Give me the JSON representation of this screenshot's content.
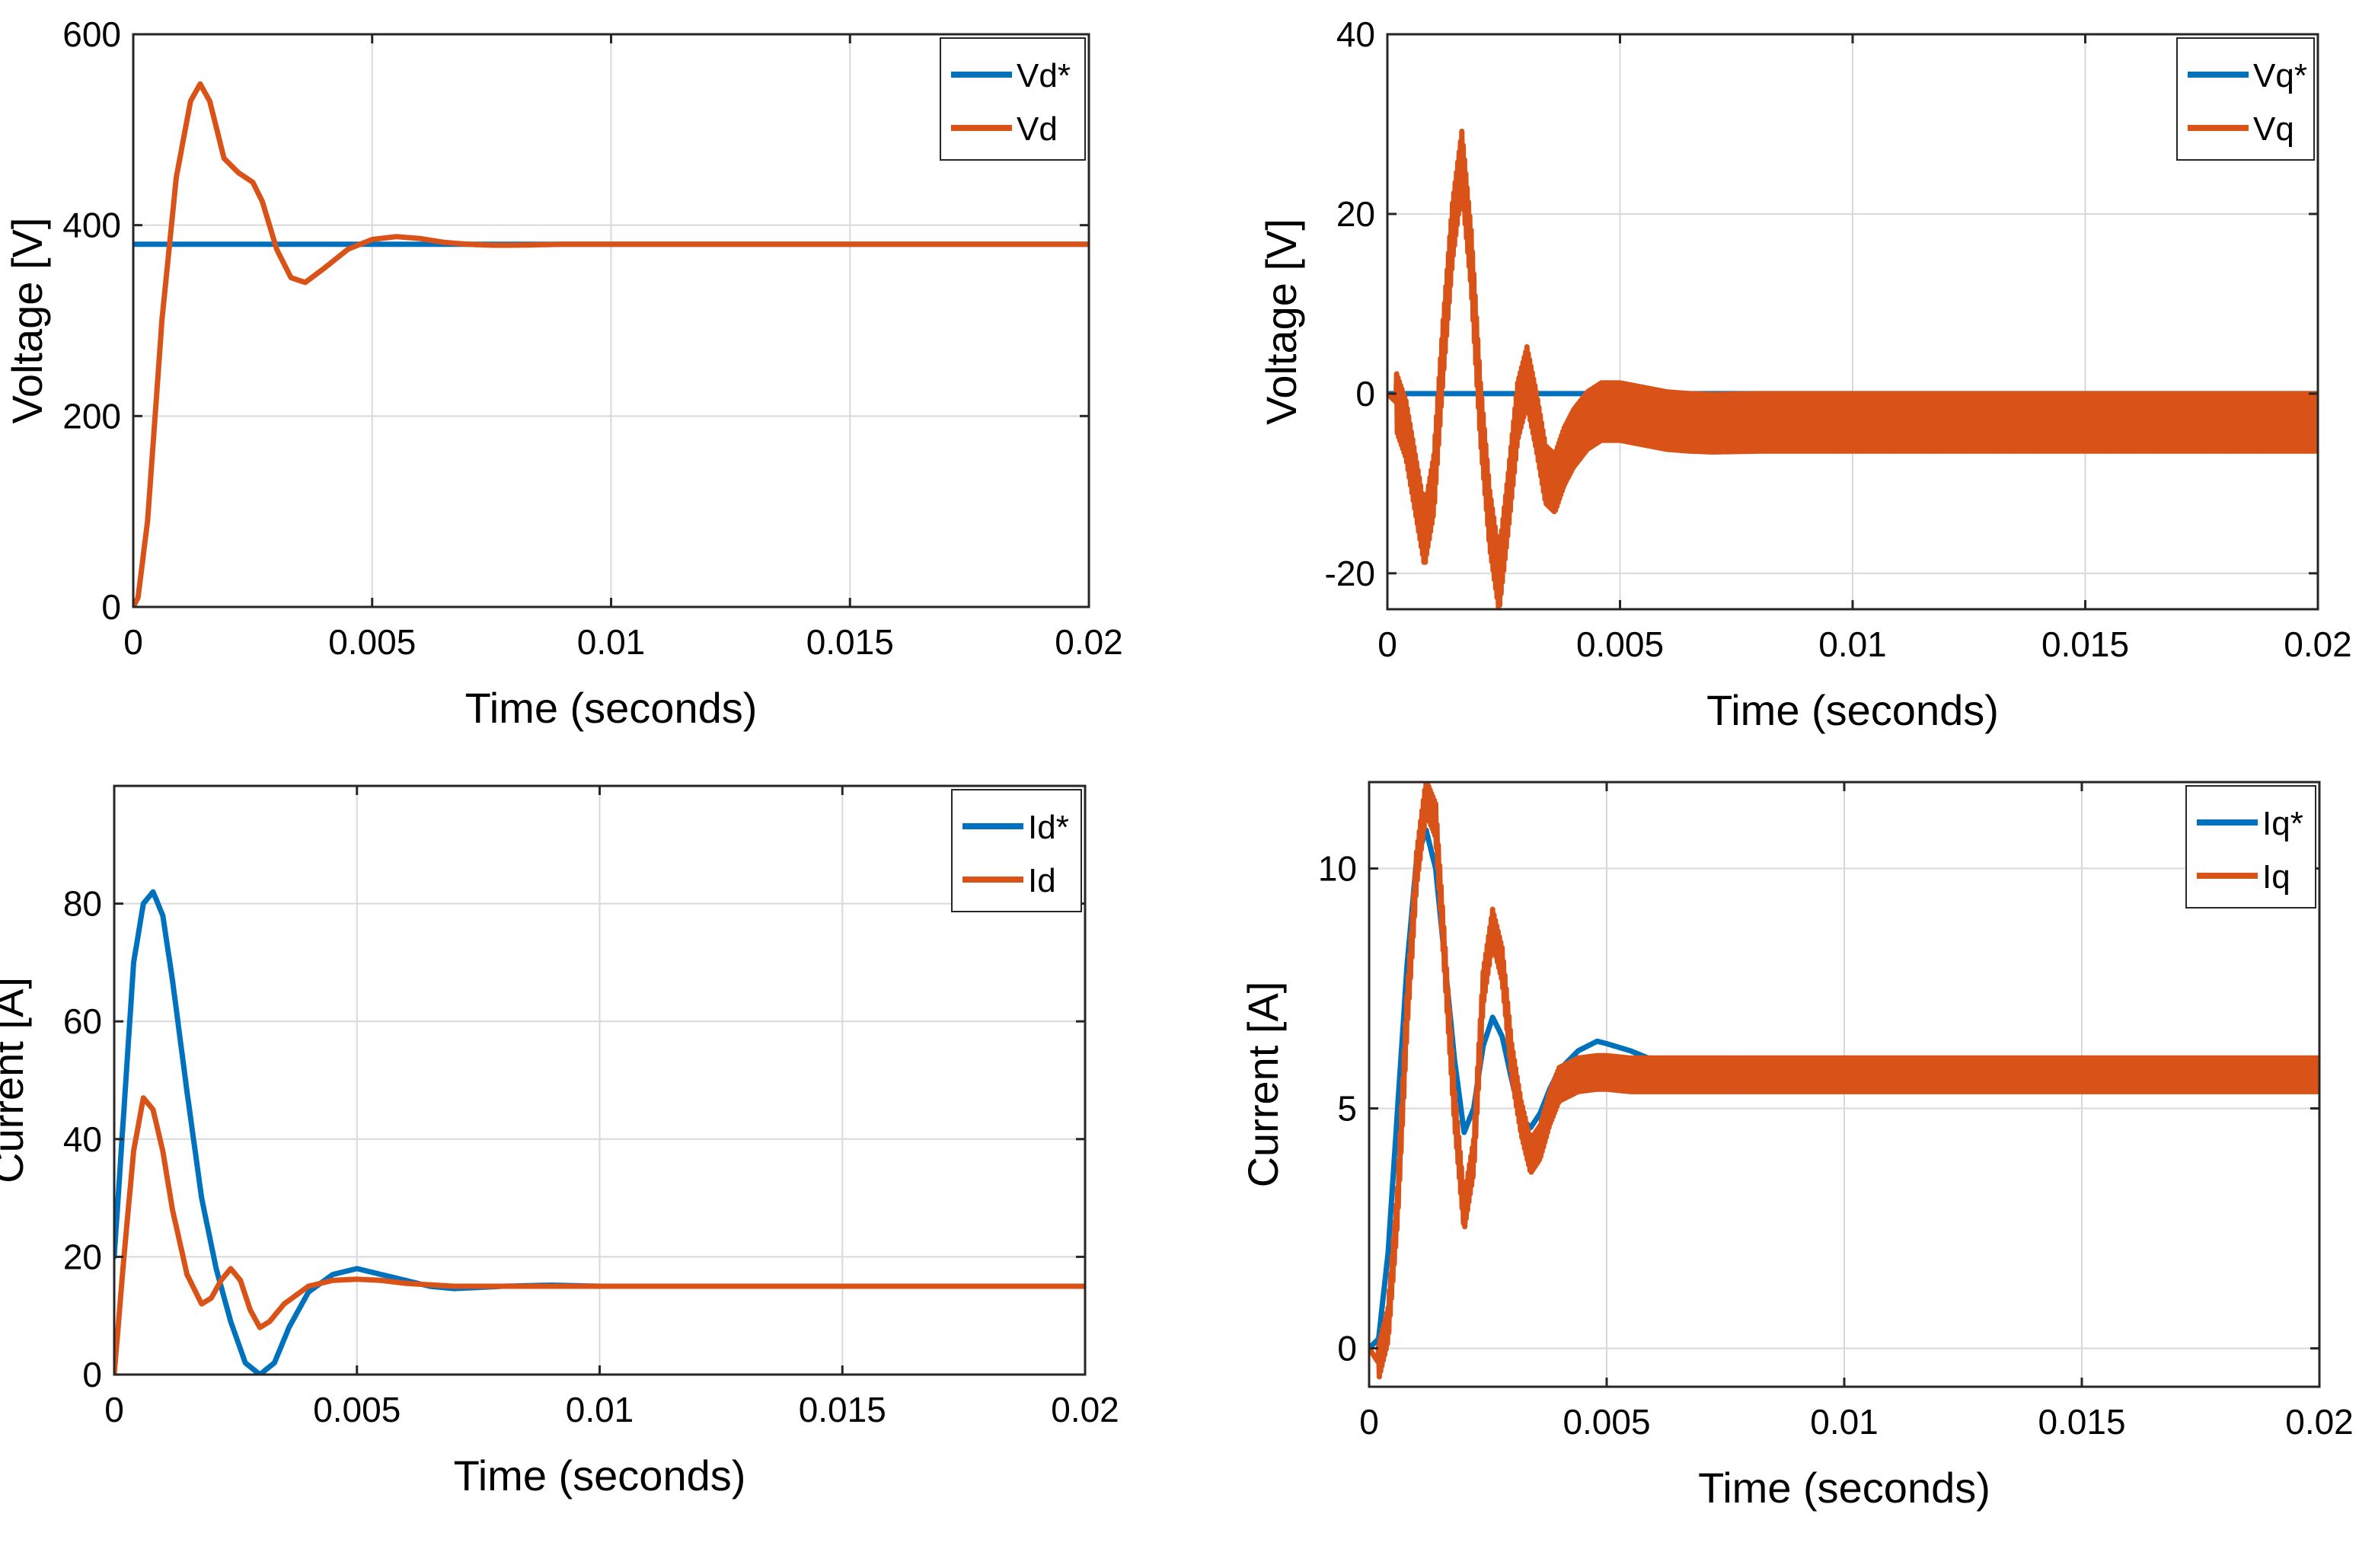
{
  "colors": {
    "blue": "#0072BD",
    "orange": "#D95319"
  },
  "chart_data": [
    {
      "id": "vd",
      "type": "line",
      "title": "",
      "xlabel": "Time (seconds)",
      "ylabel": "Voltage [V]",
      "xlim": [
        0,
        0.02
      ],
      "ylim": [
        0,
        600
      ],
      "xticks": [
        0,
        0.005,
        0.01,
        0.015,
        0.02
      ],
      "xtick_labels": [
        "0",
        "0.005",
        "0.01",
        "0.015",
        "0.02"
      ],
      "yticks": [
        0,
        200,
        400,
        600
      ],
      "ytick_labels": [
        "0",
        "200",
        "400",
        "600"
      ],
      "grid": true,
      "legend": "top-right",
      "series": [
        {
          "name": "Vd*",
          "color": "#0072BD",
          "x": [
            0,
            0.02
          ],
          "y": [
            380,
            380
          ]
        },
        {
          "name": "Vd",
          "color": "#D95319",
          "x": [
            0,
            0.0001,
            0.0003,
            0.0006,
            0.0009,
            0.0012,
            0.0014,
            0.0016,
            0.0019,
            0.0022,
            0.0025,
            0.0027,
            0.003,
            0.0033,
            0.0036,
            0.004,
            0.0045,
            0.005,
            0.0055,
            0.006,
            0.0065,
            0.007,
            0.0075,
            0.008,
            0.009,
            0.01,
            0.012,
            0.015,
            0.02
          ],
          "y": [
            0,
            10,
            90,
            300,
            450,
            530,
            548,
            530,
            470,
            455,
            445,
            425,
            375,
            345,
            340,
            355,
            375,
            385,
            388,
            386,
            382,
            380,
            379,
            379,
            380,
            380,
            380,
            380,
            380
          ]
        }
      ]
    },
    {
      "id": "vq",
      "type": "line",
      "title": "",
      "xlabel": "Time (seconds)",
      "ylabel": "Voltage [V]",
      "xlim": [
        0,
        0.02
      ],
      "ylim": [
        -24,
        40
      ],
      "xticks": [
        0,
        0.005,
        0.01,
        0.015,
        0.02
      ],
      "xtick_labels": [
        "0",
        "0.005",
        "0.01",
        "0.015",
        "0.02"
      ],
      "yticks": [
        -20,
        0,
        20,
        40
      ],
      "ytick_labels": [
        "-20",
        "0",
        "20",
        "40"
      ],
      "grid": true,
      "legend": "top-right",
      "series": [
        {
          "name": "Vq*",
          "color": "#0072BD",
          "x": [
            0,
            0.02
          ],
          "y": [
            0,
            0
          ]
        },
        {
          "name": "Vq",
          "color": "#D95319",
          "x": [
            0,
            0.0002,
            0.0004,
            0.0006,
            0.0008,
            0.001,
            0.0012,
            0.0014,
            0.0016,
            0.0018,
            0.002,
            0.0022,
            0.0024,
            0.0026,
            0.0028,
            0.003,
            0.0032,
            0.0034,
            0.0036,
            0.0038,
            0.004,
            0.0043,
            0.0046,
            0.005,
            0.0055,
            0.006,
            0.0065,
            0.007,
            0.008,
            0.01,
            0.015,
            0.02
          ],
          "y": [
            0,
            -1,
            -4,
            -10,
            -16,
            -10,
            5,
            18,
            26,
            15,
            -2,
            -14,
            -21,
            -12,
            -2,
            2,
            -3,
            -9,
            -10,
            -7,
            -5,
            -3,
            -2,
            -2,
            -2.5,
            -3,
            -3.2,
            -3.3,
            -3.2,
            -3.2,
            -3.2,
            -3.2
          ],
          "ripple": 3.2
        }
      ]
    },
    {
      "id": "id",
      "type": "line",
      "title": "",
      "xlabel": "Time (seconds)",
      "ylabel": "Current [A]",
      "xlim": [
        0,
        0.02
      ],
      "ylim": [
        0,
        100
      ],
      "xticks": [
        0,
        0.005,
        0.01,
        0.015,
        0.02
      ],
      "xtick_labels": [
        "0",
        "0.005",
        "0.01",
        "0.015",
        "0.02"
      ],
      "yticks": [
        0,
        20,
        40,
        60,
        80
      ],
      "ytick_labels": [
        "0",
        "20",
        "40",
        "60",
        "80"
      ],
      "grid": true,
      "legend": "top-right",
      "series": [
        {
          "name": "Id*",
          "color": "#0072BD",
          "x": [
            0,
            0.0002,
            0.0004,
            0.0006,
            0.0008,
            0.001,
            0.0012,
            0.0015,
            0.0018,
            0.0021,
            0.0024,
            0.0027,
            0.003,
            0.0033,
            0.0036,
            0.004,
            0.0045,
            0.005,
            0.0055,
            0.006,
            0.0065,
            0.007,
            0.0075,
            0.008,
            0.009,
            0.01,
            0.012,
            0.015,
            0.02
          ],
          "y": [
            20,
            45,
            70,
            80,
            82,
            78,
            67,
            48,
            30,
            18,
            9,
            2,
            0,
            2,
            8,
            14,
            17,
            18,
            17,
            16,
            15,
            14.6,
            14.8,
            15,
            15.2,
            15,
            15,
            15,
            15
          ]
        },
        {
          "name": "Id",
          "color": "#D95319",
          "x": [
            0,
            0.0002,
            0.0004,
            0.0006,
            0.0008,
            0.001,
            0.0012,
            0.0015,
            0.0018,
            0.002,
            0.0022,
            0.0024,
            0.0026,
            0.0028,
            0.003,
            0.0032,
            0.0035,
            0.004,
            0.0045,
            0.005,
            0.0055,
            0.006,
            0.007,
            0.008,
            0.01,
            0.012,
            0.015,
            0.02
          ],
          "y": [
            0,
            20,
            38,
            47,
            45,
            38,
            28,
            17,
            12,
            13,
            16,
            18,
            16,
            11,
            8,
            9,
            12,
            15,
            16,
            16.2,
            16,
            15.5,
            15,
            15,
            15,
            15,
            15,
            15
          ]
        }
      ]
    },
    {
      "id": "iq",
      "type": "line",
      "title": "",
      "xlabel": "Time (seconds)",
      "ylabel": "Current [A]",
      "xlim": [
        0,
        0.02
      ],
      "ylim": [
        -0.8,
        11.8
      ],
      "xticks": [
        0,
        0.005,
        0.01,
        0.015,
        0.02
      ],
      "xtick_labels": [
        "0",
        "0.005",
        "0.01",
        "0.015",
        "0.02"
      ],
      "yticks": [
        0,
        5,
        10
      ],
      "ytick_labels": [
        "0",
        "5",
        "10"
      ],
      "grid": true,
      "legend": "top-right",
      "series": [
        {
          "name": "Iq*",
          "color": "#0072BD",
          "x": [
            0,
            0.0002,
            0.0004,
            0.0006,
            0.0008,
            0.001,
            0.0012,
            0.0014,
            0.0016,
            0.0018,
            0.002,
            0.0022,
            0.0024,
            0.0026,
            0.0028,
            0.003,
            0.0032,
            0.0034,
            0.0036,
            0.0038,
            0.004,
            0.0044,
            0.0048,
            0.005,
            0.0055,
            0.006,
            0.0065,
            0.007,
            0.008,
            0.009,
            0.01,
            0.015,
            0.02
          ],
          "y": [
            0,
            0.2,
            2,
            5,
            8,
            10.2,
            10.8,
            10,
            8,
            6,
            4.5,
            5,
            6.3,
            6.9,
            6.5,
            5.6,
            4.8,
            4.6,
            4.9,
            5.4,
            5.8,
            6.2,
            6.4,
            6.35,
            6.2,
            6,
            5.9,
            5.85,
            5.9,
            6,
            5.95,
            5.95,
            5.95
          ]
        },
        {
          "name": "Iq",
          "color": "#D95319",
          "x": [
            0,
            0.0002,
            0.0004,
            0.0006,
            0.0008,
            0.001,
            0.0012,
            0.0014,
            0.0016,
            0.0018,
            0.002,
            0.0022,
            0.0024,
            0.0026,
            0.0028,
            0.003,
            0.0032,
            0.0034,
            0.0036,
            0.0038,
            0.004,
            0.0044,
            0.0048,
            0.005,
            0.0055,
            0.006,
            0.0065,
            0.007,
            0.008,
            0.01,
            0.015,
            0.02
          ],
          "y": [
            0,
            -0.3,
            0.5,
            3,
            7,
            10,
            11.5,
            11,
            8,
            5,
            2.8,
            4,
            7.5,
            8.8,
            8,
            6,
            4.8,
            4,
            4.3,
            5,
            5.5,
            5.7,
            5.75,
            5.75,
            5.7,
            5.7,
            5.7,
            5.7,
            5.7,
            5.7,
            5.7,
            5.7
          ],
          "ripple": 0.35
        }
      ]
    }
  ]
}
